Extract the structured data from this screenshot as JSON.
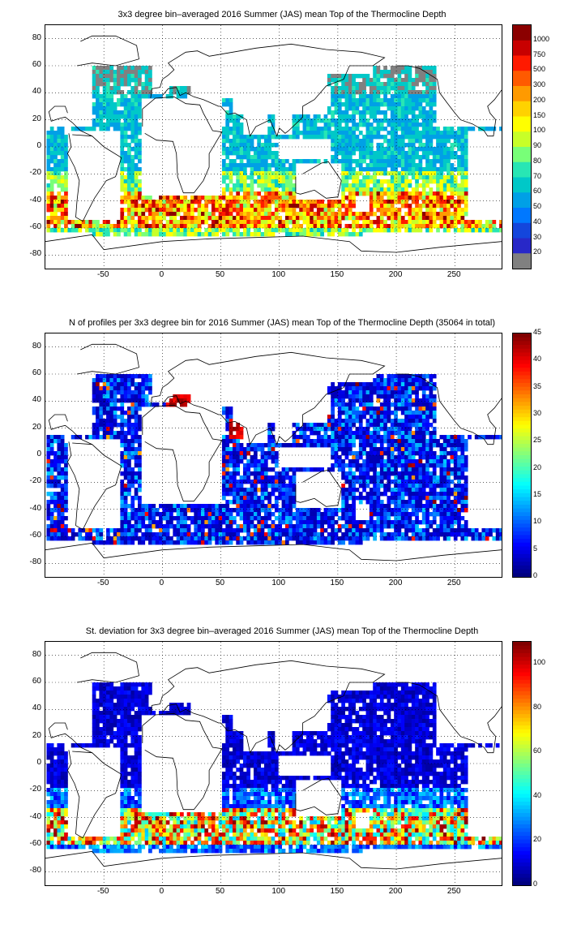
{
  "chart_data": [
    {
      "type": "heatmap",
      "title": "3x3 degree bin–averaged 2016 Summer (JAS) mean Top of the Thermocline Depth",
      "xlim": [
        -100,
        290
      ],
      "ylim": [
        -90,
        90
      ],
      "x_ticks": [
        "-50",
        "0",
        "50",
        "100",
        "150",
        "200",
        "250"
      ],
      "y_ticks": [
        "80",
        "60",
        "40",
        "20",
        "0",
        "-20",
        "-40",
        "-60",
        "-80"
      ],
      "grid": true,
      "colorbar": {
        "scale": "categorical",
        "labels": [
          "1000",
          "750",
          "500",
          "300",
          "200",
          "150",
          "100",
          "90",
          "80",
          "70",
          "60",
          "50",
          "40",
          "30",
          "20"
        ],
        "colors": [
          "#8b0000",
          "#c80000",
          "#ff1a00",
          "#ff5a00",
          "#ff9a00",
          "#ffd200",
          "#ffff00",
          "#c8ff28",
          "#78ff78",
          "#28e6b4",
          "#00c8c8",
          "#00a0e6",
          "#0078ff",
          "#1446dc",
          "#2828c8",
          "#808080"
        ]
      },
      "pattern": "mostly 20-60 m in tropics and subtropics; high values 100-300+ m along the Southern Ocean band near 40-60S; grey (<20 m) patches in the subpolar North Pacific and North Atlantic"
    },
    {
      "type": "heatmap",
      "title": "N of profiles per 3x3 degree bin for 2016 Summer (JAS) mean Top of the Thermocline Depth  (35064 in total)",
      "xlim": [
        -100,
        290
      ],
      "ylim": [
        -90,
        90
      ],
      "x_ticks": [
        "-50",
        "0",
        "50",
        "100",
        "150",
        "200",
        "250"
      ],
      "y_ticks": [
        "80",
        "60",
        "40",
        "20",
        "0",
        "-20",
        "-40",
        "-60",
        "-80"
      ],
      "grid": true,
      "colorbar": {
        "scale": "linear",
        "min": 0,
        "max": 45,
        "labels": [
          "45",
          "40",
          "35",
          "30",
          "25",
          "20",
          "15",
          "10",
          "5",
          "0"
        ]
      },
      "pattern": "mostly 0-15 profiles per bin; hot spots of 35-45 in the Mediterranean, Arabian Sea, Kuroshio and Gulf Stream regions"
    },
    {
      "type": "heatmap",
      "title": "St. deviation for 3x3 degree bin–averaged 2016 Summer (JAS) mean Top of the Thermocline Depth",
      "xlim": [
        -100,
        290
      ],
      "ylim": [
        -90,
        90
      ],
      "x_ticks": [
        "-50",
        "0",
        "50",
        "100",
        "150",
        "200",
        "250"
      ],
      "y_ticks": [
        "80",
        "60",
        "40",
        "20",
        "0",
        "-20",
        "-40",
        "-60",
        "-80"
      ],
      "grid": true,
      "colorbar": {
        "scale": "linear",
        "min": 0,
        "max": 110,
        "labels": [
          "100",
          "80",
          "60",
          "40",
          "20",
          "0"
        ]
      },
      "pattern": "low (0-15) over most ocean; high (60-110+) in the Southern Ocean band between 40S and 60S"
    }
  ]
}
